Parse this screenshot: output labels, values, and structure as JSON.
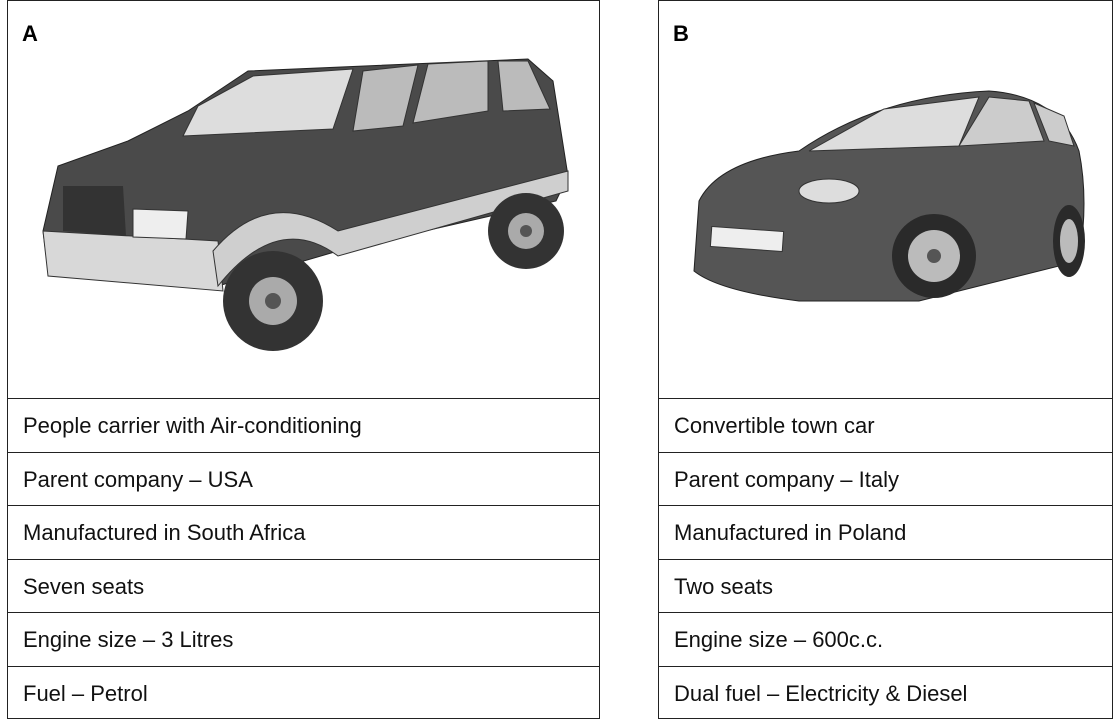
{
  "cards": [
    {
      "label": "A",
      "rows": [
        "People carrier with Air-conditioning",
        "Parent company – USA",
        "Manufactured in South Africa",
        "Seven seats",
        "Engine size – 3 Litres",
        "Fuel – Petrol"
      ]
    },
    {
      "label": "B",
      "rows": [
        "Convertible town car",
        "Parent company – Italy",
        "Manufactured in Poland",
        "Two seats",
        "Engine size – 600c.c.",
        "Dual fuel – Electricity & Diesel"
      ]
    }
  ]
}
